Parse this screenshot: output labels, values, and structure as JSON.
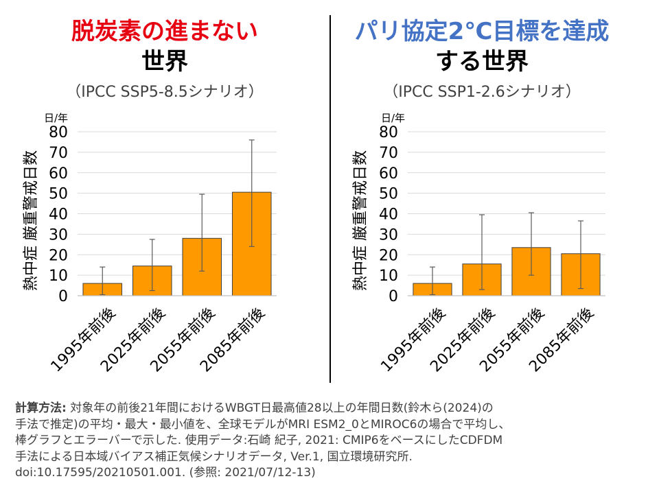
{
  "left_panel": {
    "title_line1": "脱炭素の進まない",
    "title_line2": "世界",
    "scenario": "（IPCC SSP5-8.5シナリオ）",
    "title_color": "#e60012"
  },
  "right_panel": {
    "title_line1": "パリ協定2℃目標を達成",
    "title_line2": "する世界",
    "scenario": "（IPCC SSP1-2.6シナリオ）",
    "title_color": "#4472c4"
  },
  "chart_data": [
    {
      "type": "bar",
      "unit_label": "日/年",
      "ylabel": "熱中症 厳重警戒日数",
      "categories": [
        "1995年前後",
        "2025年前後",
        "2055年前後",
        "2085年前後"
      ],
      "values": [
        6,
        14.5,
        28,
        50.5
      ],
      "err_min": [
        0.5,
        2.5,
        12,
        24
      ],
      "err_max": [
        14,
        27.5,
        49.5,
        76
      ],
      "ylim": [
        0,
        80
      ],
      "yticks": [
        "0",
        "10",
        "20",
        "30",
        "40",
        "50",
        "60",
        "70",
        "80"
      ],
      "grid": true,
      "bar_color": "#ff9900"
    },
    {
      "type": "bar",
      "unit_label": "日/年",
      "ylabel": "熱中症 厳重警戒日数",
      "categories": [
        "1995年前後",
        "2025年前後",
        "2055年前後",
        "2085年前後"
      ],
      "values": [
        6,
        15.5,
        23.5,
        20.5
      ],
      "err_min": [
        0.5,
        3,
        10,
        3.5
      ],
      "err_max": [
        14,
        39.5,
        40.5,
        36.5
      ],
      "ylim": [
        0,
        80
      ],
      "yticks": [
        "0",
        "10",
        "20",
        "30",
        "40",
        "50",
        "60",
        "70",
        "80"
      ],
      "grid": true,
      "bar_color": "#ff9900"
    }
  ],
  "footer": {
    "label": "計算方法:",
    "line1": " 対象年の前後21年間におけるWBGT日最高値28以上の年間日数(鈴木ら(2024)の",
    "line2": "手法で推定)の平均・最大・最小値を、全球モデルがMRI ESM2_0とMIROC6の場合で平均し、",
    "line3": "棒グラフとエラーバーで示した. 使用データ:石崎 紀子, 2021: CMIP6をベースにしたCDFDM",
    "line4": "手法による日本域バイアス補正気候シナリオデータ, Ver.1, 国立環境研究所.",
    "line5": "doi:10.17595/20210501.001. (参照: 2021/07/12-13)"
  }
}
